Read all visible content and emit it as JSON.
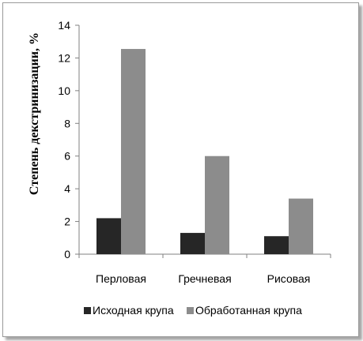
{
  "chart_data": {
    "type": "bar",
    "title": "",
    "xlabel": "",
    "ylabel": "Степень декстринизации,  %",
    "ylim": [
      0,
      14
    ],
    "yticks": [
      0,
      2,
      4,
      6,
      8,
      10,
      12,
      14
    ],
    "grid": false,
    "legend_position": "bottom",
    "categories": [
      "Перловая",
      "Гречневая",
      "Рисовая"
    ],
    "series": [
      {
        "name": "Исходная крупа",
        "color": "#262626",
        "values": [
          2.2,
          1.3,
          1.1
        ]
      },
      {
        "name": "Обработанная крупа",
        "color": "#8c8c8c",
        "values": [
          12.55,
          6.0,
          3.4
        ]
      }
    ]
  }
}
